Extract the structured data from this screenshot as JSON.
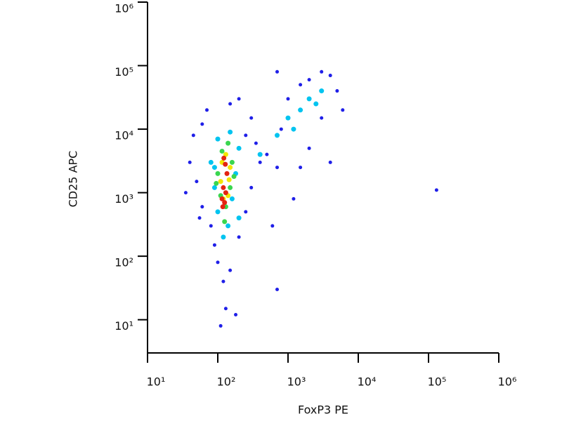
{
  "chart_data": {
    "type": "scatter",
    "xlabel": "FoxP3 PE",
    "ylabel": "CD25 APC",
    "xlog": true,
    "ylog": true,
    "xlim": [
      10,
      1000000
    ],
    "ylim": [
      3,
      1000000
    ],
    "xticks": [
      {
        "value": 10,
        "label": "10¹"
      },
      {
        "value": 100,
        "label": "10²"
      },
      {
        "value": 1000,
        "label": "10³"
      },
      {
        "value": 10000,
        "label": "10⁴"
      },
      {
        "value": 100000,
        "label": "10⁵"
      },
      {
        "value": 1000000,
        "label": "10⁶"
      }
    ],
    "yticks": [
      {
        "value": 10,
        "label": "10¹"
      },
      {
        "value": 100,
        "label": "10²"
      },
      {
        "value": 1000,
        "label": "10³"
      },
      {
        "value": 10000,
        "label": "10⁴"
      },
      {
        "value": 100000,
        "label": "10⁵"
      },
      {
        "value": 1000000,
        "label": "10⁶"
      }
    ],
    "series": [
      {
        "color": "#1f1fe8",
        "x": [
          40,
          50,
          60,
          45,
          70,
          80,
          90,
          100,
          120,
          130,
          150,
          200,
          250,
          300,
          400,
          300,
          200,
          150,
          60,
          35,
          55,
          250,
          350,
          500,
          700,
          800,
          1000,
          1500,
          2000,
          3000,
          4000,
          5000,
          3000,
          2000,
          1500,
          4000,
          6000,
          1200,
          600,
          180,
          110,
          700,
          130000,
          700
        ],
        "values": [
          3000,
          1500,
          600,
          8000,
          20000,
          300,
          150,
          80,
          40,
          15,
          60,
          200,
          500,
          1200,
          3000,
          15000,
          30000,
          25000,
          12000,
          1000,
          400,
          8000,
          6000,
          4000,
          2500,
          10000,
          30000,
          50000,
          60000,
          80000,
          70000,
          40000,
          15000,
          5000,
          2500,
          3000,
          20000,
          800,
          300,
          12,
          8,
          80000,
          1100,
          30
        ]
      },
      {
        "color": "#00c4f0",
        "x": [
          80,
          90,
          100,
          140,
          160,
          180,
          200,
          150,
          100,
          120,
          700,
          1000,
          1500,
          2000,
          2500,
          3000,
          1200,
          400,
          90,
          200
        ],
        "values": [
          3000,
          1200,
          500,
          300,
          800,
          2000,
          5000,
          9000,
          7000,
          200,
          8000,
          15000,
          20000,
          30000,
          25000,
          40000,
          10000,
          4000,
          2500,
          400
        ]
      },
      {
        "color": "#3ad64f",
        "x": [
          100,
          110,
          130,
          150,
          160,
          140,
          115,
          95,
          170,
          125
        ],
        "values": [
          2000,
          900,
          600,
          1200,
          3000,
          6000,
          4500,
          1400,
          1800,
          350
        ]
      },
      {
        "color": "#f2e600",
        "x": [
          110,
          120,
          140,
          150,
          130,
          115,
          145
        ],
        "values": [
          1500,
          800,
          900,
          2500,
          4000,
          3000,
          1600
        ]
      },
      {
        "color": "#e32412",
        "x": [
          115,
          125,
          130,
          120,
          135,
          128,
          122,
          118
        ],
        "values": [
          800,
          700,
          1000,
          1200,
          2000,
          2800,
          3500,
          600
        ]
      }
    ]
  }
}
